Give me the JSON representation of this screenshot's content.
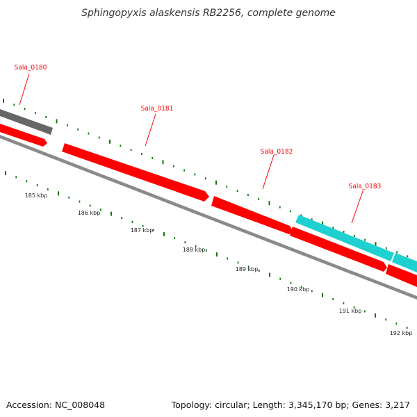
{
  "title": "Sphingopyxis alaskensis RB2256, complete genome",
  "footer": {
    "accession": "Accession: NC_008048",
    "summary": "Topology: circular; Length: 3,345,170 bp; Genes: 3,217"
  },
  "colors": {
    "forward_gene": "#ff0000",
    "forward_gene_dark": "#c80000",
    "reverse_gene_gray": "#666666",
    "reverse_gene_cyan": "#22d4d4",
    "backbone": "#888888",
    "tick": "#117711",
    "label": "#ff0000"
  },
  "gene_labels": [
    "Sala_0180",
    "Sala_0181",
    "Sala_0182",
    "Sala_0183"
  ],
  "scale_labels": [
    "185 kbp",
    "186 kbp",
    "187 kbp",
    "188 kbp",
    "189 kbp",
    "190 kbp",
    "191 kbp",
    "192 kbp"
  ]
}
